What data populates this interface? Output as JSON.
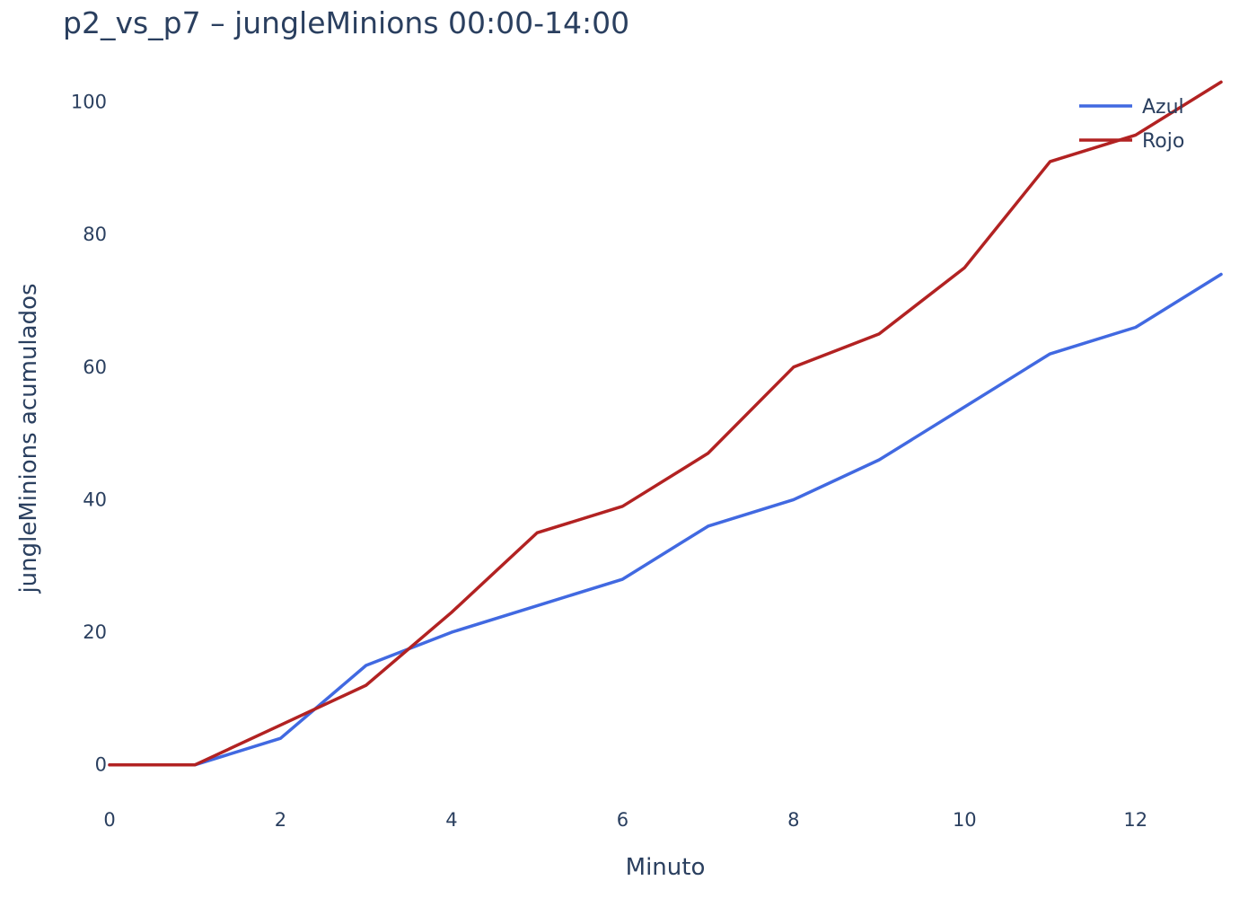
{
  "chart_data": {
    "type": "line",
    "title": "p2_vs_p7 – jungleMinions 00:00-14:00",
    "xlabel": "Minuto",
    "ylabel": "jungleMinions acumulados",
    "x": [
      0,
      1,
      2,
      3,
      4,
      5,
      6,
      7,
      8,
      9,
      10,
      11,
      12,
      13
    ],
    "xlim": [
      0,
      13
    ],
    "ylim": [
      -6,
      104
    ],
    "x_ticks": [
      0,
      2,
      4,
      6,
      8,
      10,
      12
    ],
    "y_ticks": [
      0,
      20,
      40,
      60,
      80,
      100
    ],
    "grid": false,
    "legend_position": "top-right",
    "series": [
      {
        "name": "Azul",
        "color": "#4169e1",
        "values": [
          0,
          0,
          4,
          15,
          20,
          24,
          28,
          36,
          40,
          46,
          54,
          62,
          66,
          74
        ]
      },
      {
        "name": "Rojo",
        "color": "#b22222",
        "values": [
          0,
          0,
          6,
          12,
          23,
          35,
          39,
          47,
          60,
          65,
          75,
          91,
          95,
          103
        ]
      }
    ]
  }
}
